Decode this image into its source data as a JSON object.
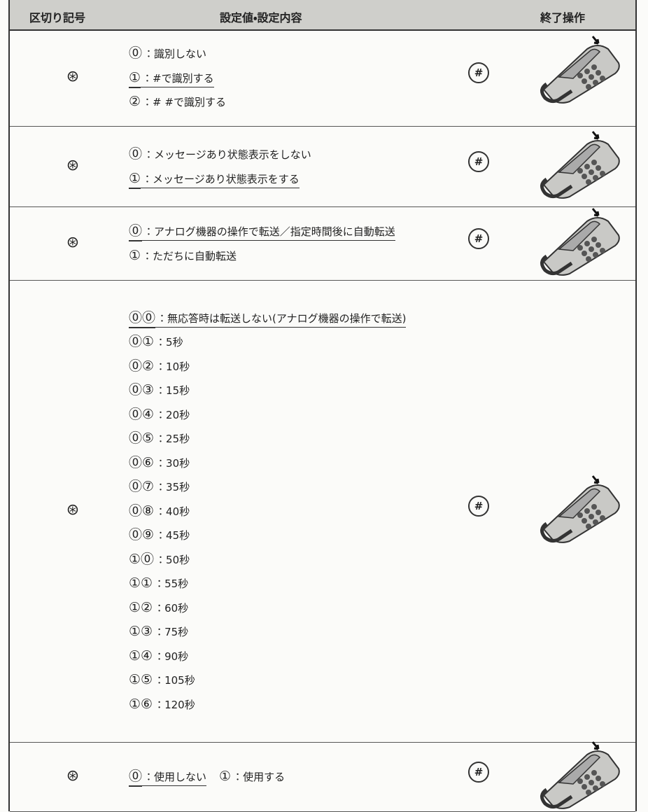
{
  "header": {
    "separator": "区切り記号",
    "setting": "設定値・設定内容",
    "end": "終了操作"
  },
  "rows": [
    {
      "separator": "⊛",
      "items": [
        {
          "key": "⓪",
          "text": "：識別しない"
        },
        {
          "key": "①",
          "text": "：#で識別する",
          "default": true
        },
        {
          "key": "②",
          "text": "：# #で識別する"
        }
      ],
      "end": "#"
    },
    {
      "separator": "⊛",
      "items": [
        {
          "key": "⓪",
          "text": "：メッセージあり状態表示をしない"
        },
        {
          "key": "①",
          "text": "：メッセージあり状態表示をする",
          "default": true
        }
      ],
      "end": "#"
    },
    {
      "separator": "⊛",
      "items": [
        {
          "key": "⓪",
          "text": "：アナログ機器の操作で転送／指定時間後に自動転送",
          "default": true
        },
        {
          "key": "①",
          "text": "：ただちに自動転送"
        }
      ],
      "end": "#"
    },
    {
      "separator": "⊛",
      "items": [
        {
          "key": "⓪⓪",
          "text": "：無応答時は転送しない(アナログ機器の操作で転送)",
          "default": true
        },
        {
          "key": "⓪①",
          "text": "：5秒"
        },
        {
          "key": "⓪②",
          "text": "：10秒"
        },
        {
          "key": "⓪③",
          "text": "：15秒"
        },
        {
          "key": "⓪④",
          "text": "：20秒"
        },
        {
          "key": "⓪⑤",
          "text": "：25秒"
        },
        {
          "key": "⓪⑥",
          "text": "：30秒"
        },
        {
          "key": "⓪⑦",
          "text": "：35秒"
        },
        {
          "key": "⓪⑧",
          "text": "：40秒"
        },
        {
          "key": "⓪⑨",
          "text": "：45秒"
        },
        {
          "key": "①⓪",
          "text": "：50秒"
        },
        {
          "key": "①①",
          "text": "：55秒"
        },
        {
          "key": "①②",
          "text": "：60秒"
        },
        {
          "key": "①③",
          "text": "：75秒"
        },
        {
          "key": "①④",
          "text": "：90秒"
        },
        {
          "key": "①⑤",
          "text": "：105秒"
        },
        {
          "key": "①⑥",
          "text": "：120秒"
        }
      ],
      "end": "#"
    },
    {
      "separator": "⊛",
      "inline": true,
      "items": [
        {
          "key": "⓪",
          "text": "：使用しない",
          "default": true
        },
        {
          "key": "①",
          "text": "：使用する"
        }
      ],
      "end": "#"
    }
  ]
}
